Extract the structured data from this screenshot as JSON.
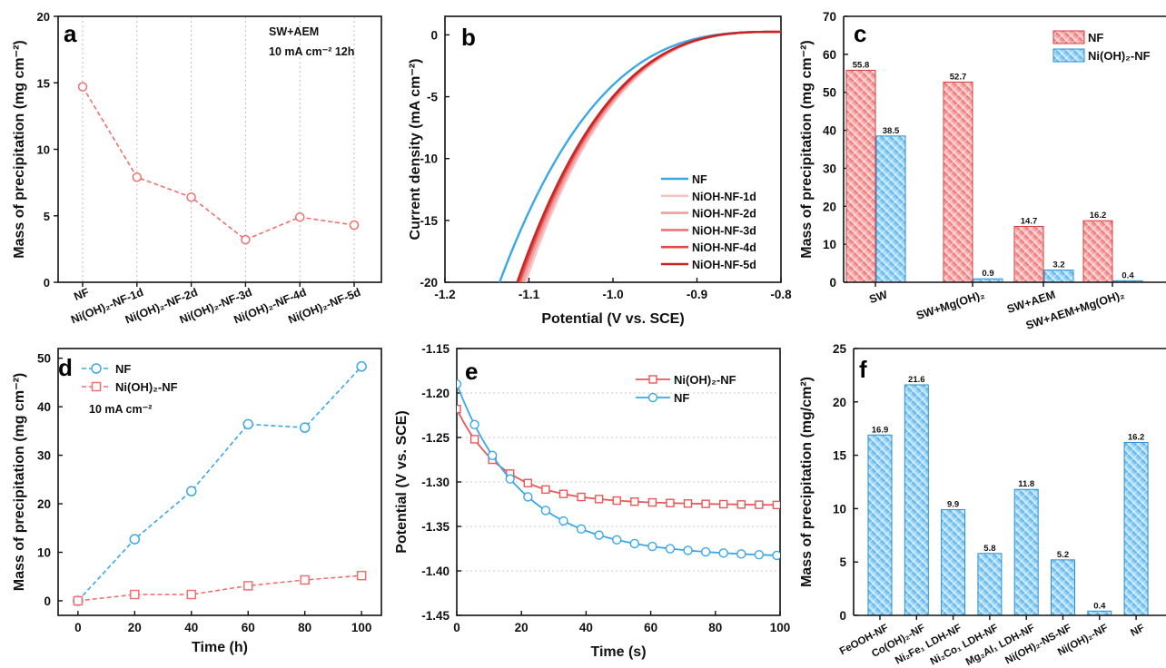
{
  "chart_data": [
    {
      "panel": "a",
      "type": "line",
      "ylabel": "Mass of precipitation (mg cm⁻²)",
      "ylim": [
        0,
        20
      ],
      "yticks": [
        0,
        5,
        10,
        15,
        20
      ],
      "categories": [
        "NF",
        "Ni(OH)₂-NF-1d",
        "Ni(OH)₂-NF-2d",
        "Ni(OH)₂-NF-3d",
        "Ni(OH)₂-NF-4d",
        "Ni(OH)₂-NF-5d"
      ],
      "values": [
        14.7,
        7.9,
        6.4,
        3.2,
        4.9,
        4.3
      ],
      "annotations": [
        "SW+AEM",
        "10 mA cm⁻² 12h"
      ],
      "grid": "vertical-dotted",
      "color": "#f07070"
    },
    {
      "panel": "b",
      "type": "line",
      "xlabel": "Potential (V vs. SCE)",
      "ylabel": "Current density (mA cm⁻²)",
      "xlim": [
        -1.2,
        -0.8
      ],
      "ylim": [
        -20,
        1.5
      ],
      "xticks": [
        "-1.2",
        "-1.1",
        "-1.0",
        "-0.9",
        "-0.8"
      ],
      "yticks": [
        "-20",
        "-15",
        "-10",
        "-5",
        "0"
      ],
      "series": [
        {
          "name": "NF",
          "color": "#3aa8e8",
          "onset": -1.135
        },
        {
          "name": "NiOH-NF-1d",
          "color": "#f6c4c4",
          "onset": -1.104
        },
        {
          "name": "NiOH-NF-2d",
          "color": "#f0a0a0",
          "onset": -1.107
        },
        {
          "name": "NiOH-NF-3d",
          "color": "#e87878",
          "onset": -1.11
        },
        {
          "name": "NiOH-NF-4d",
          "color": "#e04848",
          "onset": -1.112
        },
        {
          "name": "NiOH-NF-5d",
          "color": "#c82424",
          "onset": -1.114
        }
      ],
      "legend": "bottom-right"
    },
    {
      "panel": "c",
      "type": "bar",
      "ylabel": "Mass of precipitation (mg cm⁻²)",
      "ylim": [
        0,
        70
      ],
      "yticks": [
        0,
        10,
        20,
        30,
        40,
        50,
        60,
        70
      ],
      "categories": [
        "SW",
        "SW+Mg(OH)₂",
        "SW+AEM",
        "SW+AEM+Mg(OH)₂"
      ],
      "series": [
        {
          "name": "NF",
          "values": [
            55.8,
            52.7,
            14.7,
            16.2
          ],
          "labels": [
            "55.8",
            "52.7",
            "14.7",
            "16.2"
          ],
          "color": "#f07878"
        },
        {
          "name": "Ni(OH)₂-NF",
          "values": [
            38.5,
            0.9,
            3.2,
            0.4
          ],
          "labels": [
            "38.5",
            "0.9",
            "3.2",
            "0.4"
          ],
          "color": "#5ab8f0"
        }
      ],
      "legend": "top-right"
    },
    {
      "panel": "d",
      "type": "line",
      "xlabel": "Time (h)",
      "ylabel": "Mass of precipitation (mg cm⁻²)",
      "xlim": [
        -7,
        107
      ],
      "ylim": [
        -3,
        52
      ],
      "xticks": [
        0,
        20,
        40,
        60,
        80,
        100
      ],
      "yticks": [
        0,
        10,
        20,
        30,
        40,
        50
      ],
      "annotations": [
        "10 mA cm⁻²"
      ],
      "series": [
        {
          "name": "NF",
          "x": [
            0,
            20,
            40,
            60,
            80,
            100
          ],
          "y": [
            0,
            12.7,
            22.6,
            36.4,
            35.7,
            48.3
          ],
          "color": "#3aa8e8",
          "marker": "circle"
        },
        {
          "name": "Ni(OH)₂-NF",
          "x": [
            0,
            20,
            40,
            60,
            80,
            100
          ],
          "y": [
            0,
            1.3,
            1.3,
            3.1,
            4.3,
            5.2
          ],
          "color": "#f07070",
          "marker": "square"
        }
      ],
      "legend": "top-left"
    },
    {
      "panel": "e",
      "type": "line",
      "xlabel": "Time (s)",
      "ylabel": "Potential (V vs. SCE)",
      "xlim": [
        0,
        100
      ],
      "ylim": [
        -1.45,
        -1.15
      ],
      "xticks": [
        0,
        20,
        40,
        60,
        80,
        100
      ],
      "yticks": [
        "-1.15",
        "-1.20",
        "-1.25",
        "-1.30",
        "-1.35",
        "-1.40",
        "-1.45"
      ],
      "series": [
        {
          "name": "Ni(OH)₂-NF",
          "color": "#e85858",
          "marker": "square",
          "start": -1.218,
          "end": -1.322
        },
        {
          "name": "NF",
          "color": "#3aa8e8",
          "marker": "circle",
          "start": -1.19,
          "end": -1.378
        }
      ],
      "legend": "top-right"
    },
    {
      "panel": "f",
      "type": "bar",
      "ylabel": "Mass of precipitation (mg/cm²)",
      "ylim": [
        0,
        25
      ],
      "yticks": [
        0,
        5,
        10,
        15,
        20,
        25
      ],
      "categories": [
        "FeOOH-NF",
        "Co(OH)₂-NF",
        "Ni₂Fe₁ LDH-NF",
        "Ni₂Co₁ LDH-NF",
        "Mg₂Al₁ LDH-NF",
        "Ni(OH)₂-NS-NF",
        "Ni(OH)₂-NF",
        "NF"
      ],
      "values": [
        16.9,
        21.6,
        9.9,
        5.8,
        11.8,
        5.2,
        0.4,
        16.2
      ],
      "labels": [
        "16.9",
        "21.6",
        "9.9",
        "5.8",
        "11.8",
        "5.2",
        "0.4",
        "16.2"
      ],
      "color": "#5ab8f0"
    }
  ]
}
